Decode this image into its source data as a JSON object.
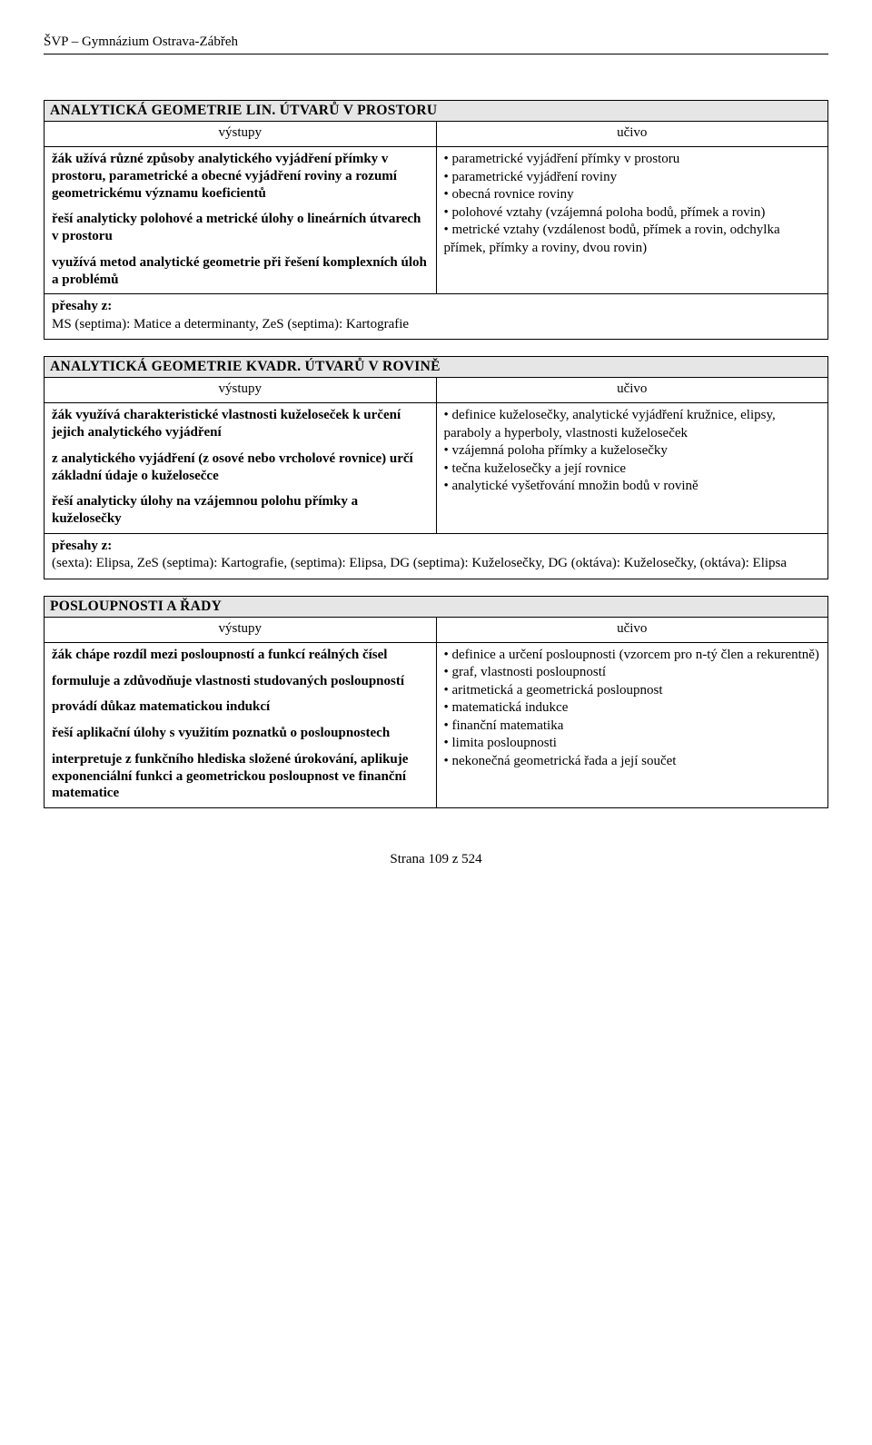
{
  "header": "ŠVP – Gymnázium Ostrava-Zábřeh",
  "col_vystupy": "výstupy",
  "col_ucivo": "učivo",
  "overlap_label": "přesahy z:",
  "sec1": {
    "title": "ANALYTICKÁ GEOMETRIE LIN. ÚTVARŮ V PROSTORU",
    "out1": "žák užívá různé způsoby analytického vyjádření přímky v prostoru, parametrické a obecné vyjádření roviny a rozumí geometrickému významu koeficientů",
    "out2": "řeší analyticky polohové a metrické úlohy o lineárních útvarech v prostoru",
    "out3": "využívá metod analytické geometrie při řešení komplexních úloh a problémů",
    "u1": "• parametrické vyjádření přímky v prostoru",
    "u2": "• parametrické vyjádření roviny",
    "u3": "• obecná rovnice roviny",
    "u4": "• polohové vztahy (vzájemná poloha bodů, přímek a rovin)",
    "u5": "• metrické vztahy (vzdálenost bodů, přímek a rovin, odchylka přímek, přímky a roviny, dvou rovin)",
    "overlap": "MS (septima): Matice a determinanty, ZeS (septima): Kartografie"
  },
  "sec2": {
    "title": "ANALYTICKÁ GEOMETRIE KVADR. ÚTVARŮ V ROVINĚ",
    "out1": "žák využívá charakteristické vlastnosti kuželoseček k určení jejich analytického vyjádření",
    "out2": "z analytického vyjádření (z osové nebo vrcholové rovnice) určí základní údaje o kuželosečce",
    "out3": "řeší analyticky úlohy na vzájemnou polohu přímky a kuželosečky",
    "u1": "• definice kuželosečky, analytické vyjádření kružnice, elipsy, paraboly a hyperboly, vlastnosti kuželoseček",
    "u2": "• vzájemná poloha přímky a kuželosečky",
    "u3": "• tečna kuželosečky a její rovnice",
    "u4": "• analytické vyšetřování množin bodů v rovině",
    "overlap": "(sexta): Elipsa, ZeS (septima): Kartografie, (septima): Elipsa, DG (septima): Kuželosečky, DG (oktáva): Kuželosečky, (oktáva): Elipsa"
  },
  "sec3": {
    "title": "POSLOUPNOSTI A ŘADY",
    "out1": "žák chápe rozdíl mezi posloupností a funkcí reálných čísel",
    "out2": "formuluje a zdůvodňuje vlastnosti studovaných posloupností",
    "out3": "provádí důkaz matematickou indukcí",
    "out4": "řeší aplikační úlohy s využitím poznatků o posloupnostech",
    "out5": "interpretuje z funkčního hlediska složené úrokování, aplikuje exponenciální funkci a geometrickou posloupnost ve finanční matematice",
    "u1": "• definice a určení posloupnosti (vzorcem pro n-tý člen a rekurentně)",
    "u2": "• graf, vlastnosti posloupností",
    "u3": "• aritmetická a geometrická posloupnost",
    "u4": "• matematická indukce",
    "u5": "• finanční matematika",
    "u6": "• limita posloupnosti",
    "u7": "• nekonečná geometrická řada a její součet"
  },
  "footer": "Strana 109 z 524"
}
